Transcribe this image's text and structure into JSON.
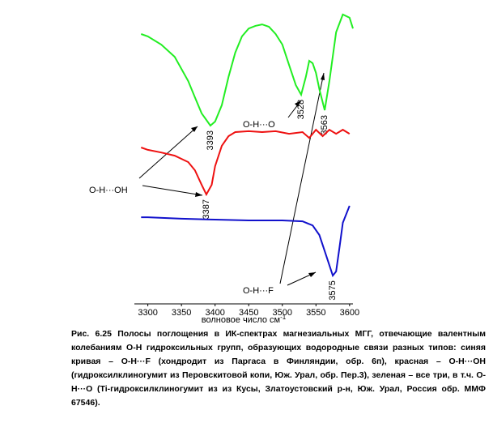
{
  "chart_data": {
    "type": "line",
    "xlabel": "волновое число см",
    "xlabel_sup": "-1",
    "xlim": [
      3280,
      3605
    ],
    "xticks": [
      3300,
      3350,
      3400,
      3450,
      3500,
      3550,
      3600
    ],
    "ylim": [
      0,
      100
    ],
    "series": [
      {
        "color": "#22ee22",
        "x": [
          3290,
          3300,
          3320,
          3340,
          3360,
          3370,
          3380,
          3393,
          3400,
          3410,
          3420,
          3430,
          3440,
          3450,
          3460,
          3470,
          3480,
          3490,
          3500,
          3510,
          3520,
          3528,
          3535,
          3540,
          3545,
          3550,
          3555,
          3563,
          3570,
          3580,
          3590,
          3600,
          3605
        ],
        "values": [
          92.5,
          91.7,
          88.9,
          84.7,
          76.4,
          70.8,
          65.3,
          61.1,
          62.5,
          68.1,
          77.8,
          86.1,
          91.7,
          94.4,
          95.3,
          95.8,
          95,
          92.5,
          88.9,
          81.9,
          75,
          71.7,
          77.8,
          83.3,
          82.5,
          79.2,
          73.6,
          66.4,
          76.4,
          93.1,
          99.2,
          98.1,
          94.4
        ],
        "peaks": [
          3393,
          3528,
          3563
        ]
      },
      {
        "color": "#ee1111",
        "x": [
          3290,
          3300,
          3320,
          3340,
          3360,
          3370,
          3380,
          3387,
          3395,
          3400,
          3410,
          3420,
          3430,
          3450,
          3470,
          3490,
          3510,
          3530,
          3540,
          3550,
          3560,
          3570,
          3580,
          3590,
          3600
        ],
        "values": [
          53.6,
          52.8,
          51.9,
          50.8,
          48.6,
          45.8,
          40.8,
          37.5,
          40.8,
          47.2,
          54.2,
          57.5,
          58.9,
          59.2,
          58.9,
          59.2,
          58.3,
          58.9,
          56.9,
          59.7,
          57.5,
          59.7,
          58.3,
          59.7,
          58.3
        ],
        "peaks": [
          3387
        ]
      },
      {
        "color": "#1111cc",
        "x": [
          3290,
          3300,
          3350,
          3400,
          3450,
          3500,
          3530,
          3545,
          3555,
          3565,
          3575,
          3580,
          3585,
          3590,
          3600
        ],
        "values": [
          29.7,
          29.7,
          29.2,
          28.9,
          28.6,
          28.6,
          28.3,
          26.9,
          23.6,
          16.7,
          9.7,
          11.1,
          19.4,
          27.8,
          33.6
        ],
        "peaks": [
          3575
        ]
      }
    ],
    "annotations": [
      "O-H···O",
      "O-H···OH",
      "O-H···F"
    ]
  },
  "caption": "Рис. 6.25 Полосы поглощения в ИК-спектрах магнезиальных МГГ, отвечающие валентным колебаниям O-H гидроксильных групп, образующих водородные связи разных типов: синяя кривая – O-H···F (хондродит из Паргаса в Финляндии, обр. 6п), красная – O-H···OH (гидроксилклиногумит из Перовскитовой копи, Юж. Урал, обр. Пер.3), зеленая – все три, в т.ч. O-H···O (Ti-гидроксилклиногумит из из Кусы, Златоустовский р-н, Юж. Урал, Россия обр. ММФ 67546)."
}
